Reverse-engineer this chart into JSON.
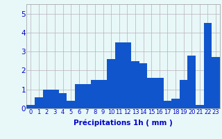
{
  "hours": [
    0,
    1,
    2,
    3,
    4,
    5,
    6,
    7,
    8,
    9,
    10,
    11,
    12,
    13,
    14,
    15,
    16,
    17,
    18,
    19,
    20,
    21,
    22,
    23
  ],
  "values": [
    0.2,
    0.6,
    1.0,
    1.0,
    0.8,
    0.4,
    1.3,
    1.3,
    1.5,
    1.5,
    2.6,
    3.5,
    3.5,
    2.5,
    2.4,
    1.6,
    1.6,
    0.4,
    0.5,
    1.5,
    2.8,
    0.2,
    4.5,
    2.7
  ],
  "xlabel": "Précipitations 1h ( mm )",
  "ylim": [
    0,
    5.5
  ],
  "yticks": [
    0,
    1,
    2,
    3,
    4,
    5
  ],
  "bar_color": "#1155cc",
  "background_color": "#e8f8f8",
  "grid_color": "#b8b0b8",
  "label_color": "#0000cc",
  "tick_fontsize": 6.0,
  "xlabel_fontsize": 7.5
}
